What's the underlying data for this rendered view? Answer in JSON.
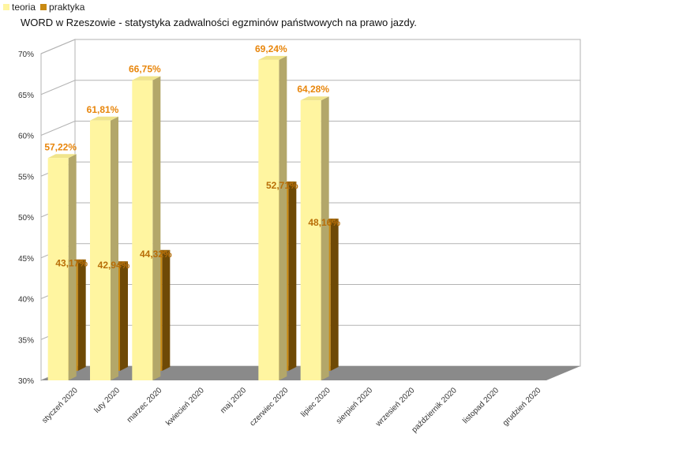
{
  "legend": [
    {
      "label": "teoria",
      "color": "#fff5a0"
    },
    {
      "label": "praktyka",
      "color": "#c98a12"
    }
  ],
  "chart_data": {
    "type": "bar",
    "title": "WORD w Rzeszowie - statystyka zadwalności egzminów państwowych na prawo jazdy.",
    "categories": [
      "styczeń 2020",
      "luty 2020",
      "marzec 2020",
      "kwiecień 2020",
      "maj 2020",
      "czerwiec 2020",
      "lipiec 2020",
      "sierpień 2020",
      "wrzesień 2020",
      "październik 2020",
      "listopad 2020",
      "grudzień 2020"
    ],
    "series": [
      {
        "name": "teoria",
        "values": [
          57.22,
          61.81,
          66.75,
          null,
          null,
          69.24,
          64.28,
          null,
          null,
          null,
          null,
          null
        ],
        "labels": [
          "57,22%",
          "61,81%",
          "66,75%",
          "",
          "",
          "69,24%",
          "64,28%",
          "",
          "",
          "",
          "",
          ""
        ]
      },
      {
        "name": "praktyka",
        "values": [
          43.17,
          42.94,
          44.32,
          null,
          null,
          52.71,
          48.16,
          null,
          null,
          null,
          null,
          null
        ],
        "labels": [
          "43,17%",
          "42,94%",
          "44,32%",
          "",
          "",
          "52,71%",
          "48,16%",
          "",
          "",
          "",
          "",
          ""
        ]
      }
    ],
    "ylim": [
      30,
      70
    ],
    "yticks": [
      30,
      35,
      40,
      45,
      50,
      55,
      60,
      65,
      70
    ],
    "ytick_labels": [
      "30%",
      "35%",
      "40%",
      "45%",
      "50%",
      "55%",
      "60%",
      "65%",
      "70%"
    ],
    "xlabel": "",
    "ylabel": "",
    "grid": true,
    "legend_position": "top-left",
    "colors": {
      "teoria": "#fff5a0",
      "praktyka": "#c98a12",
      "label_teoria": "#e8860c",
      "label_praktyka": "#b86e08",
      "floor": "#8a8a8a"
    }
  }
}
